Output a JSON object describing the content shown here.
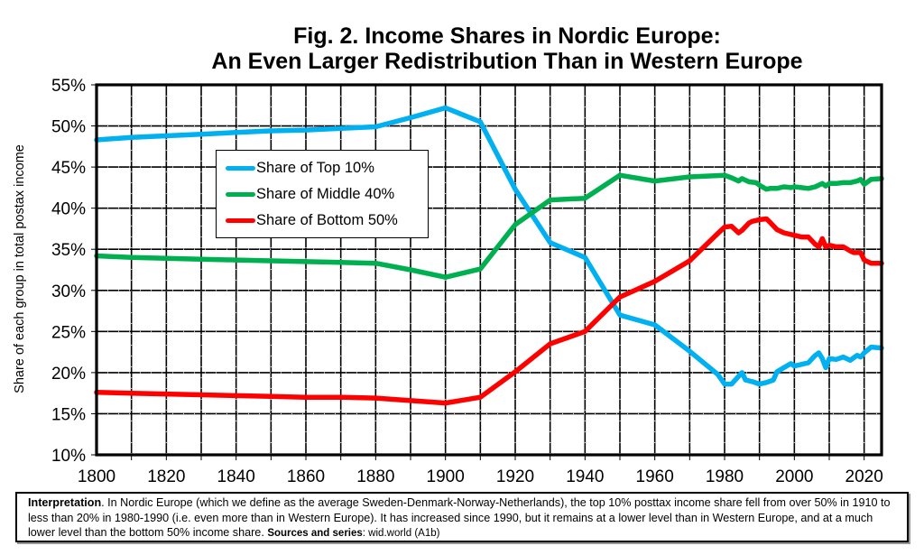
{
  "title": {
    "line1": "Fig. 2. Income Shares in Nordic Europe:",
    "line2": "An Even Larger Redistribution Than in Western Europe"
  },
  "chart_data": {
    "type": "line",
    "title": "Fig. 2. Income Shares in Nordic Europe: An Even Larger Redistribution Than in Western Europe",
    "xlabel": "",
    "ylabel": "Share of each group in total postax income",
    "xlim": [
      1800,
      2025
    ],
    "ylim": [
      10,
      55
    ],
    "x_ticks": [
      "1800",
      "1820",
      "1840",
      "1860",
      "1880",
      "1900",
      "1920",
      "1940",
      "1960",
      "1980",
      "2000",
      "2020"
    ],
    "x_tick_values": [
      1800,
      1820,
      1840,
      1860,
      1880,
      1900,
      1920,
      1940,
      1960,
      1980,
      2000,
      2020
    ],
    "y_ticks": [
      "10%",
      "15%",
      "20%",
      "25%",
      "30%",
      "35%",
      "40%",
      "45%",
      "50%",
      "55%"
    ],
    "y_tick_values": [
      10,
      15,
      20,
      25,
      30,
      35,
      40,
      45,
      50,
      55
    ],
    "grid": true,
    "legend_position": "upper-left-center",
    "series": [
      {
        "name": "Share of Top 10%",
        "color": "#00b0f0",
        "x": [
          1800,
          1810,
          1820,
          1830,
          1840,
          1850,
          1860,
          1870,
          1880,
          1890,
          1900,
          1910,
          1920,
          1930,
          1940,
          1950,
          1960,
          1970,
          1978,
          1980,
          1982,
          1985,
          1986,
          1988,
          1990,
          1992,
          1994,
          1995,
          1997,
          1999,
          2000,
          2002,
          2004,
          2006,
          2007,
          2008,
          2009,
          2010,
          2012,
          2014,
          2016,
          2018,
          2019,
          2020,
          2022,
          2025
        ],
        "values": [
          48.3,
          48.6,
          48.8,
          49.0,
          49.2,
          49.4,
          49.5,
          49.7,
          49.9,
          51.0,
          52.2,
          50.5,
          42.3,
          35.8,
          34.0,
          27.0,
          25.8,
          22.6,
          19.8,
          18.6,
          18.6,
          20.0,
          19.1,
          18.9,
          18.6,
          18.8,
          19.1,
          20.1,
          20.6,
          21.1,
          20.8,
          21.0,
          21.2,
          22.1,
          22.4,
          21.7,
          20.6,
          21.7,
          21.6,
          21.9,
          21.5,
          22.1,
          21.9,
          22.4,
          23.1,
          23.0
        ]
      },
      {
        "name": "Share of Middle 40%",
        "color": "#00b050",
        "x": [
          1800,
          1810,
          1820,
          1830,
          1840,
          1850,
          1860,
          1870,
          1880,
          1890,
          1900,
          1910,
          1920,
          1930,
          1940,
          1950,
          1960,
          1970,
          1980,
          1982,
          1984,
          1985,
          1987,
          1989,
          1990,
          1992,
          1993,
          1995,
          1997,
          1999,
          2000,
          2002,
          2004,
          2006,
          2008,
          2009,
          2010,
          2012,
          2014,
          2016,
          2018,
          2019,
          2020,
          2022,
          2025
        ],
        "values": [
          34.2,
          34.0,
          33.9,
          33.8,
          33.7,
          33.6,
          33.5,
          33.4,
          33.3,
          32.5,
          31.6,
          32.6,
          38.0,
          41.0,
          41.2,
          44.0,
          43.3,
          43.8,
          44.0,
          43.7,
          43.3,
          43.6,
          43.2,
          43.1,
          42.8,
          42.3,
          42.4,
          42.4,
          42.6,
          42.5,
          42.6,
          42.5,
          42.4,
          42.6,
          43.0,
          42.7,
          43.0,
          43.0,
          43.1,
          43.1,
          43.3,
          43.5,
          42.9,
          43.5,
          43.6
        ]
      },
      {
        "name": "Share of Bottom 50%",
        "color": "#ff0000",
        "x": [
          1800,
          1810,
          1820,
          1830,
          1840,
          1850,
          1860,
          1870,
          1880,
          1890,
          1900,
          1910,
          1920,
          1930,
          1940,
          1950,
          1960,
          1970,
          1978,
          1980,
          1982,
          1984,
          1985,
          1987,
          1988,
          1990,
          1992,
          1993,
          1995,
          1997,
          1999,
          2000,
          2002,
          2004,
          2006,
          2007,
          2008,
          2009,
          2010,
          2012,
          2014,
          2016,
          2017,
          2019,
          2020,
          2022,
          2025
        ],
        "values": [
          17.6,
          17.5,
          17.4,
          17.3,
          17.2,
          17.1,
          17.0,
          17.0,
          16.9,
          16.6,
          16.3,
          17.0,
          20.1,
          23.5,
          25.0,
          29.2,
          31.1,
          33.6,
          36.9,
          37.7,
          37.8,
          37.0,
          37.3,
          38.2,
          38.4,
          38.6,
          38.7,
          38.3,
          37.4,
          37.0,
          36.8,
          36.7,
          36.5,
          36.5,
          35.6,
          35.3,
          36.3,
          35.3,
          35.5,
          35.3,
          35.3,
          34.8,
          34.6,
          34.6,
          33.7,
          33.3,
          33.3
        ]
      }
    ]
  },
  "legend": {
    "items": [
      {
        "label": "Share of Top 10%",
        "color": "#00b0f0"
      },
      {
        "label": "Share of Middle 40%",
        "color": "#00b050"
      },
      {
        "label": "Share of Bottom 50%",
        "color": "#ff0000"
      }
    ]
  },
  "note": {
    "label": "Interpretation",
    "text": ". In Nordic Europe (which we define as the average Sweden-Denmark-Norway-Netherlands), the top 10% posttax income share fell from over 50% in 1910 to less than 20% in 1980-1990 (i.e. even more than in Western Europe). It has increased since 1990, but it remains at a lower level than in Western Europe, and at a much lower level than the bottom 50% income share. ",
    "sources_label": "Sources and series",
    "sources_text": ": wid.world (A1b)"
  }
}
